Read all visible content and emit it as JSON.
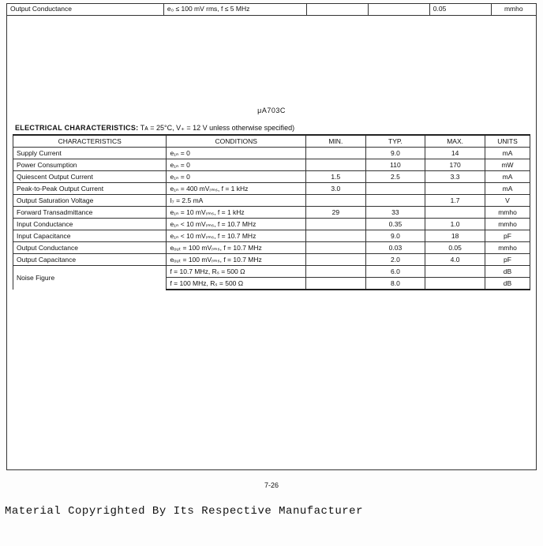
{
  "topRow": {
    "characteristic": "Output Conductance",
    "condition": "e₀ ≤ 100 mV rms, f ≤ 5 MHz",
    "min": "",
    "typ": "",
    "max": "0.05",
    "units": "mmho"
  },
  "partNumber": "μA703C",
  "sectionTitle": "ELECTRICAL CHARACTERISTICS:",
  "sectionCond": " Tᴀ = 25°C, V₊ = 12 V unless otherwise specified)",
  "headers": {
    "characteristic": "CHARACTERISTICS",
    "condition": "CONDITIONS",
    "min": "MIN.",
    "typ": "TYP.",
    "max": "MAX.",
    "units": "UNITS"
  },
  "rows": [
    {
      "char": "Supply Current",
      "cond": "e₁ₙ = 0",
      "min": "",
      "typ": "9.0",
      "max": "14",
      "units": "mA"
    },
    {
      "char": "Power Consumption",
      "cond": "e₁ₙ = 0",
      "min": "",
      "typ": "110",
      "max": "170",
      "units": "mW"
    },
    {
      "char": "Quiescent Output Current",
      "cond": "e₁ₙ = 0",
      "min": "1.5",
      "typ": "2.5",
      "max": "3.3",
      "units": "mA"
    },
    {
      "char": "Peak-to-Peak Output Current",
      "cond": "e₁ₙ = 400 mVᵣₘₛ, f = 1 kHz",
      "min": "3.0",
      "typ": "",
      "max": "",
      "units": "mA"
    },
    {
      "char": "Output Saturation Voltage",
      "cond": "I₇ = 2.5 mA",
      "min": "",
      "typ": "",
      "max": "1.7",
      "units": "V"
    },
    {
      "char": "Forward Transadmittance",
      "cond": "e₁ₙ = 10 mVᵣₘₛ, f = 1 kHz",
      "min": "29",
      "typ": "33",
      "max": "",
      "units": "mmho"
    },
    {
      "char": "Input Conductance",
      "cond": "e₁ₙ < 10 mVᵣₘₛ, f = 10.7 MHz",
      "min": "",
      "typ": "0.35",
      "max": "1.0",
      "units": "mmho"
    },
    {
      "char": "Input Capacitance",
      "cond": "e₁ₙ < 10 mVᵣₘₛ, f = 10.7 MHz",
      "min": "",
      "typ": "9.0",
      "max": "18",
      "units": "pF"
    },
    {
      "char": "Output Conductance",
      "cond": "eₒᵤₜ = 100 mVᵣₘₛ, f = 10.7 MHz",
      "min": "",
      "typ": "0.03",
      "max": "0.05",
      "units": "mmho"
    },
    {
      "char": "Output Capacitance",
      "cond": "eₒᵤₜ = 100 mVᵣₘₛ, f = 10.7 MHz",
      "min": "",
      "typ": "2.0",
      "max": "4.0",
      "units": "pF"
    },
    {
      "char": "Noise Figure",
      "cond": "f = 10.7 MHz, Rₛ = 500 Ω",
      "min": "",
      "typ": "6.0",
      "max": "",
      "units": "dB",
      "rowspan": 2
    },
    {
      "char": "",
      "cond": "f = 100 MHz, Rₛ = 500 Ω",
      "min": "",
      "typ": "8.0",
      "max": "",
      "units": "dB",
      "skipChar": true
    }
  ],
  "pageNumber": "7-26",
  "copyright": "Material Copyrighted By Its Respective Manufacturer"
}
